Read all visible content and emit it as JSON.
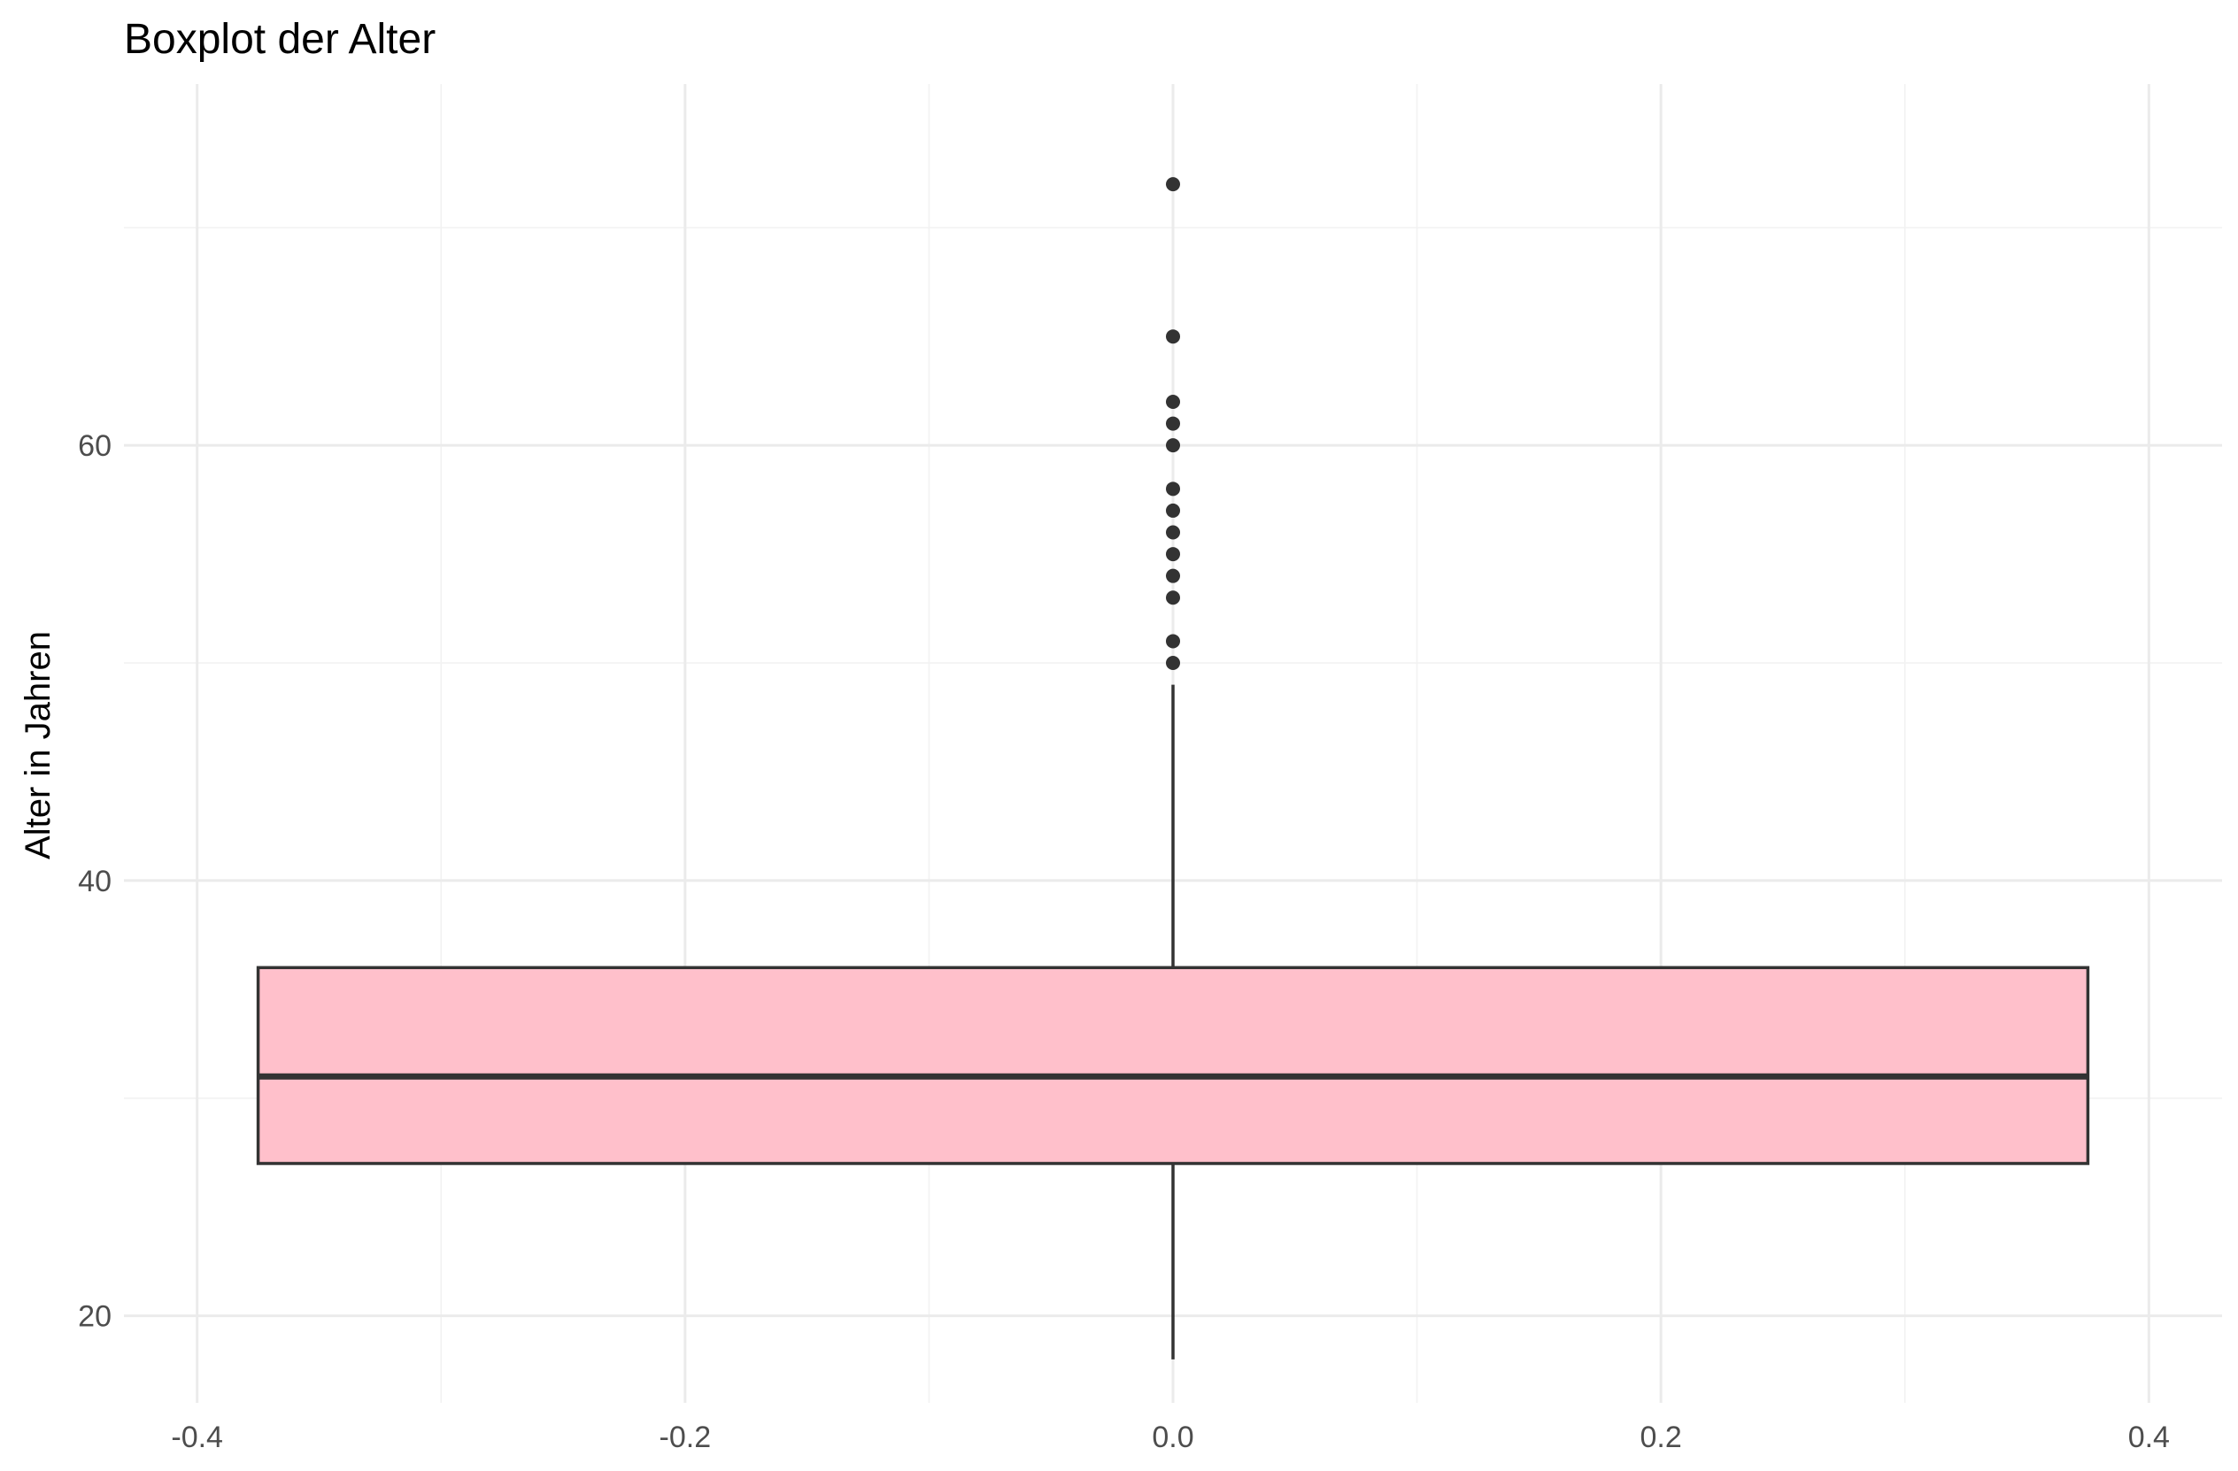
{
  "chart_data": {
    "type": "boxplot",
    "title": "Boxplot der Alter",
    "xlabel": "",
    "ylabel": "Alter in Jahren",
    "xlim": [
      -0.43,
      0.43
    ],
    "ylim": [
      16.0,
      76.6
    ],
    "x_ticks": [
      -0.4,
      -0.2,
      0.0,
      0.2,
      0.4
    ],
    "x_tick_labels": [
      "-0.4",
      "-0.2",
      "0.0",
      "0.2",
      "0.4"
    ],
    "y_ticks": [
      20,
      40,
      60
    ],
    "y_tick_labels": [
      "20",
      "40",
      "60"
    ],
    "grid": true,
    "fill_color": "#ffc0cb",
    "line_color": "#333333",
    "box": {
      "x_center": 0.0,
      "x_range": [
        -0.375,
        0.375
      ],
      "whisker_low": 18,
      "q1": 27,
      "median": 31,
      "q3": 36,
      "whisker_high": 49
    },
    "outliers": [
      50,
      51,
      53,
      54,
      55,
      56,
      57,
      58,
      60,
      61,
      62,
      65,
      72
    ]
  }
}
